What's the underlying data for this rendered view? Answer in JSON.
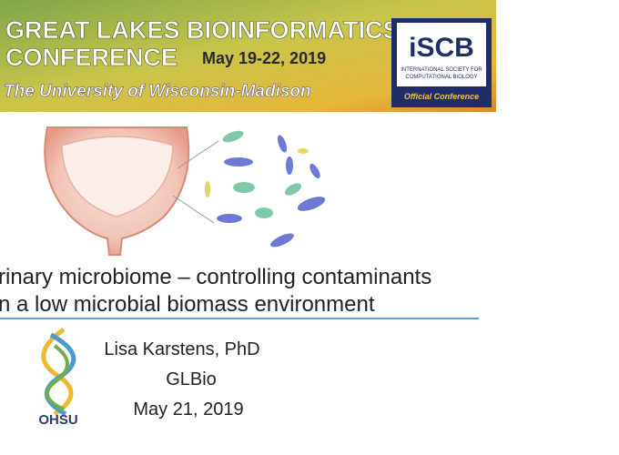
{
  "banner": {
    "line1": "GREAT LAKES BIOINFORMATICS",
    "line2": "CONFERENCE",
    "dates": "May 19-22, 2019",
    "host": "The University of Wisconsin-Madison"
  },
  "iscb": {
    "logo": "iSCB",
    "society": [
      "INTERNATIONAL SOCIETY FOR",
      "COMPUTATIONAL BIOLOGY"
    ],
    "badge": "Official Conference"
  },
  "title": [
    "rinary microbiome – controlling contaminants",
    "n a low microbial biomass environment"
  ],
  "author": {
    "name": "Lisa Karstens, PhD",
    "event": "GLBio",
    "date": "May 21, 2019"
  },
  "logo": {
    "label": "OHSU"
  }
}
